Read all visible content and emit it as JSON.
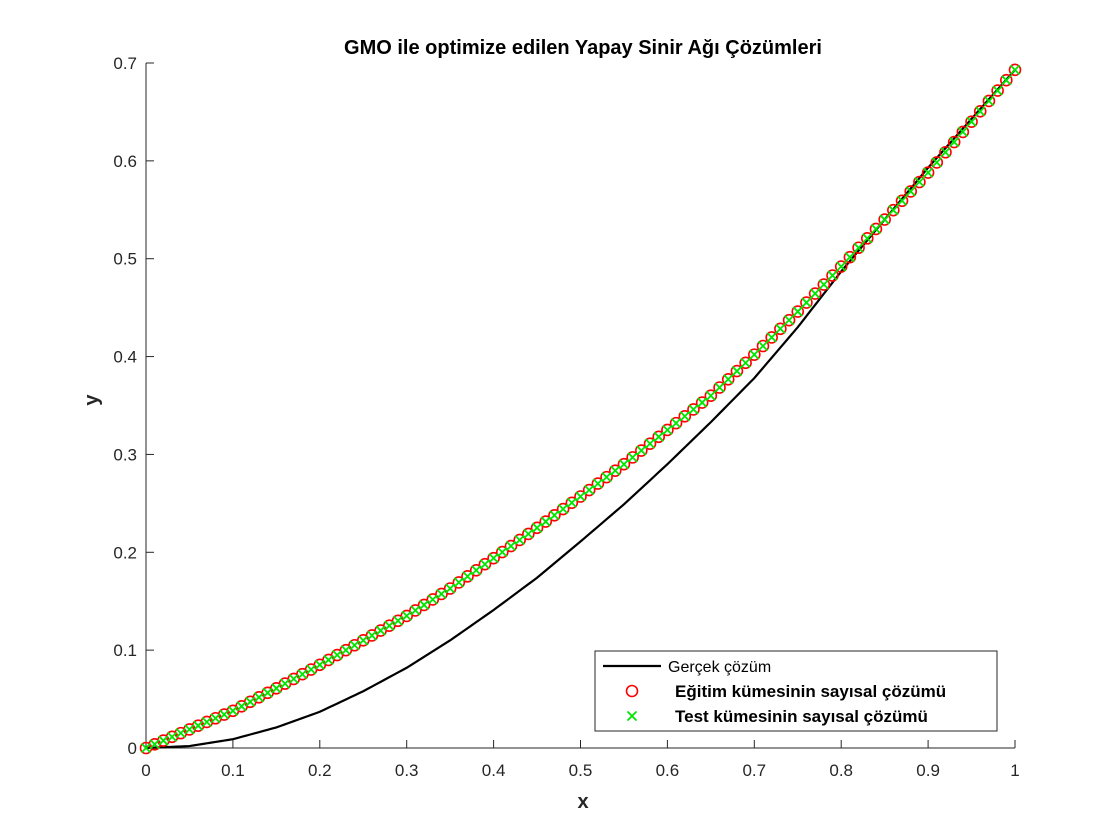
{
  "chart_data": {
    "type": "line",
    "title": "GMO ile optimize edilen Yapay Sinir Ağı Çözümleri",
    "xlabel": "x",
    "ylabel": "y",
    "xlim": [
      0,
      1
    ],
    "ylim": [
      0,
      0.7
    ],
    "xticks": [
      "0",
      "0.1",
      "0.2",
      "0.3",
      "0.4",
      "0.5",
      "0.6",
      "0.7",
      "0.8",
      "0.9",
      "1"
    ],
    "yticks": [
      "0",
      "0.1",
      "0.2",
      "0.3",
      "0.4",
      "0.5",
      "0.6",
      "0.7"
    ],
    "grid": false,
    "legend_position": "bottom-right",
    "series": [
      {
        "name": "Gerçek çözüm",
        "style": "solid-line",
        "color": "#000000",
        "x": [
          0,
          0.05,
          0.1,
          0.15,
          0.2,
          0.25,
          0.3,
          0.35,
          0.4,
          0.45,
          0.5,
          0.55,
          0.6,
          0.65,
          0.7,
          0.75,
          0.8,
          0.85,
          0.9,
          0.95,
          1.0
        ],
        "y": [
          0,
          0.002,
          0.009,
          0.021,
          0.037,
          0.058,
          0.082,
          0.11,
          0.141,
          0.174,
          0.211,
          0.249,
          0.29,
          0.333,
          0.378,
          0.43,
          0.487,
          0.54,
          0.593,
          0.643,
          0.693
        ]
      },
      {
        "name": "Eğitim kümesinin sayısal çözümü",
        "style": "circle-marker",
        "color": "#ff0000",
        "x": [
          0,
          0.05,
          0.1,
          0.15,
          0.2,
          0.25,
          0.3,
          0.35,
          0.4,
          0.45,
          0.5,
          0.55,
          0.6,
          0.65,
          0.7,
          0.75,
          0.8,
          0.85,
          0.9,
          0.95,
          1.0
        ],
        "y": [
          0,
          0.019,
          0.038,
          0.061,
          0.085,
          0.11,
          0.135,
          0.163,
          0.194,
          0.225,
          0.257,
          0.29,
          0.325,
          0.36,
          0.402,
          0.446,
          0.492,
          0.54,
          0.588,
          0.64,
          0.693
        ]
      },
      {
        "name": "Test kümesinin sayısal çözümü",
        "style": "x-marker",
        "color": "#00e600",
        "x": [
          0,
          0.05,
          0.1,
          0.15,
          0.2,
          0.25,
          0.3,
          0.35,
          0.4,
          0.45,
          0.5,
          0.55,
          0.6,
          0.65,
          0.7,
          0.75,
          0.8,
          0.85,
          0.9,
          0.95,
          1.0
        ],
        "y": [
          0,
          0.019,
          0.038,
          0.061,
          0.085,
          0.11,
          0.135,
          0.163,
          0.194,
          0.225,
          0.257,
          0.29,
          0.325,
          0.36,
          0.402,
          0.446,
          0.492,
          0.54,
          0.588,
          0.64,
          0.693
        ]
      }
    ]
  }
}
